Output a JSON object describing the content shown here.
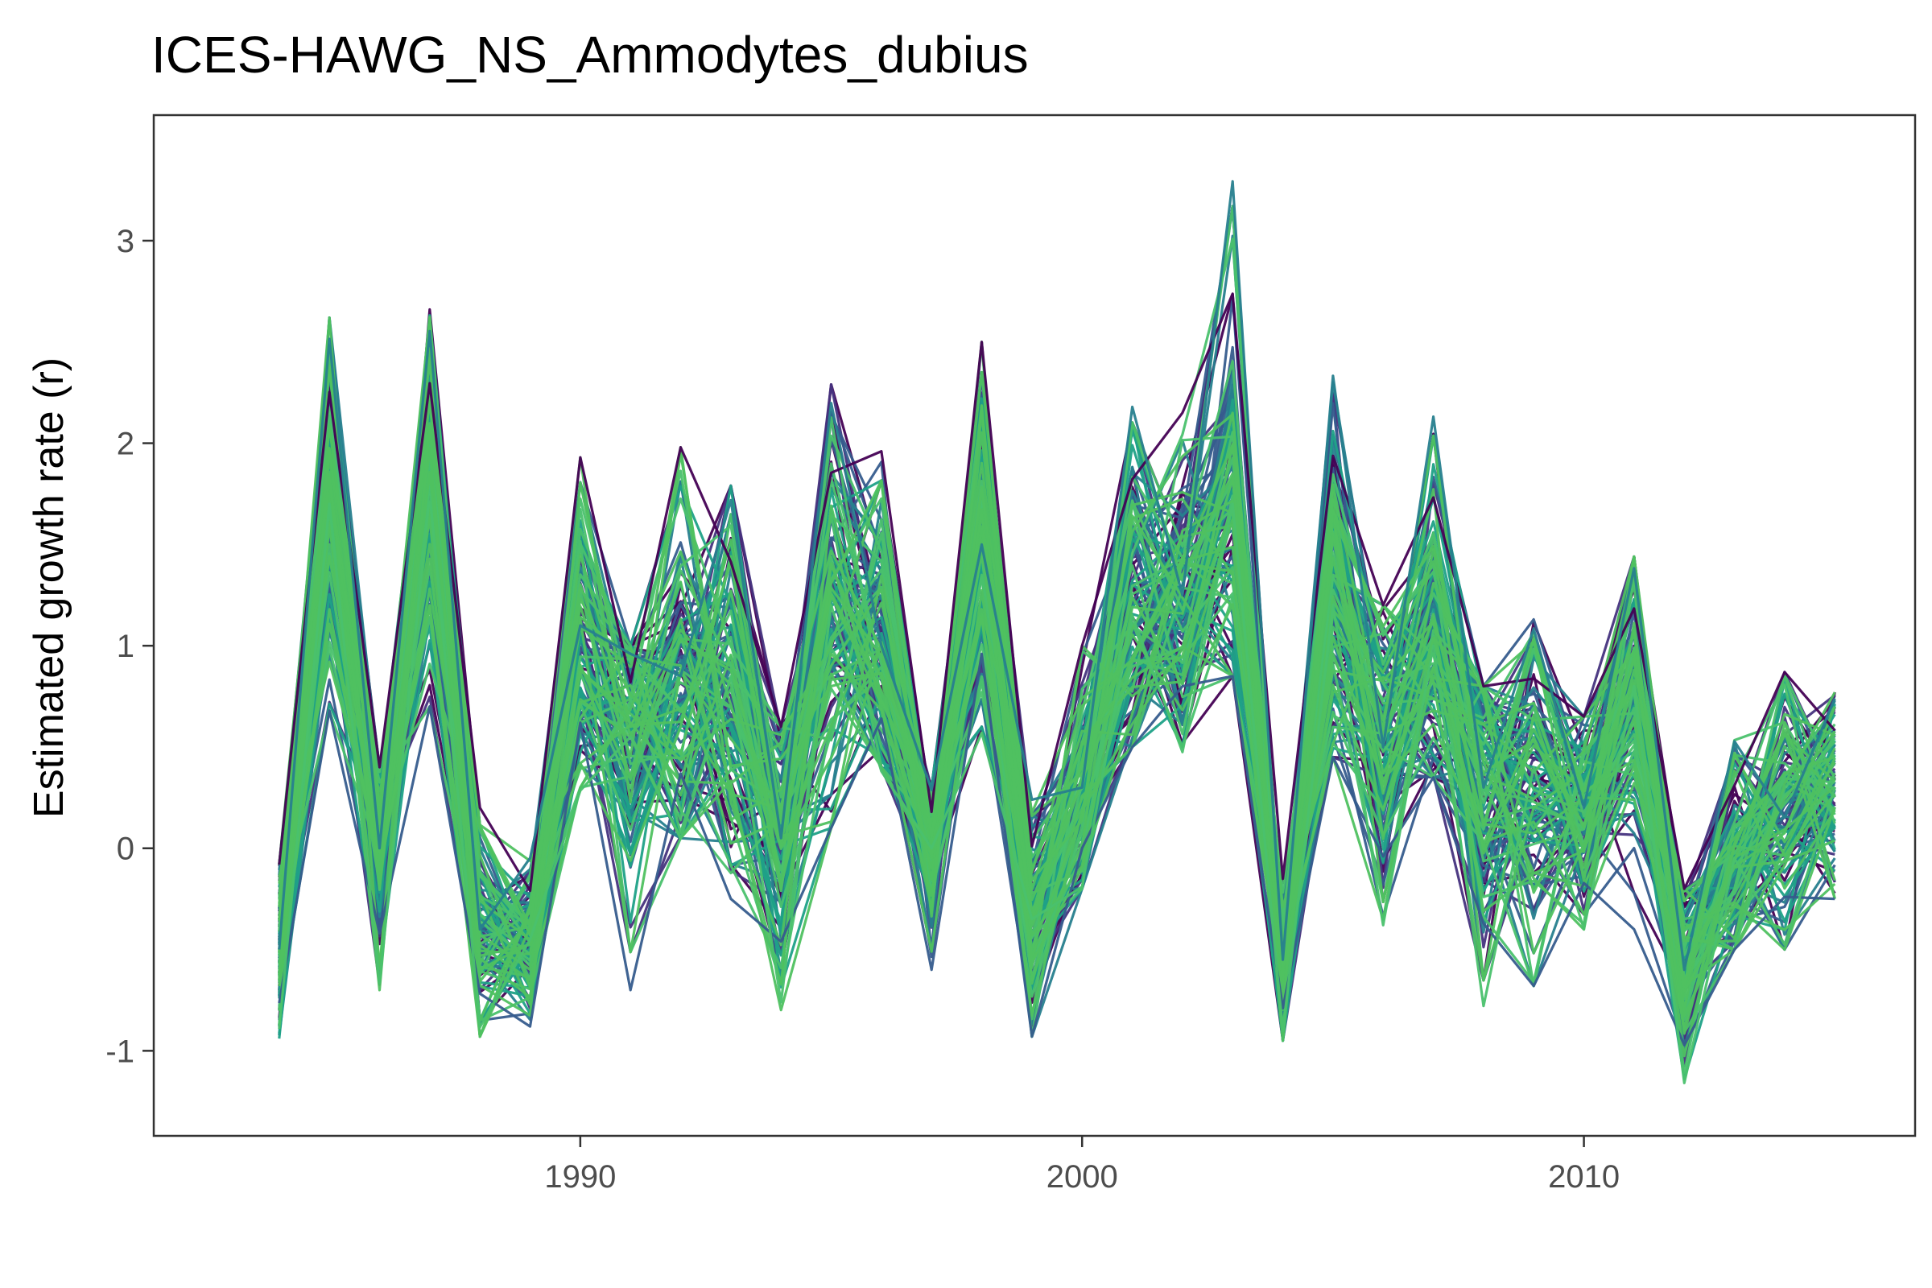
{
  "chart_data": {
    "type": "line",
    "title": "ICES-HAWG_NS_Ammodytes_dubius",
    "xlabel": "",
    "ylabel": "Estimated growth rate (r)",
    "xlim": [
      1981.5,
      2016.6
    ],
    "ylim": [
      -1.42,
      3.62
    ],
    "x_ticks": [
      1990,
      2000,
      2010
    ],
    "x_tick_labels": [
      "1990",
      "2000",
      "2010"
    ],
    "y_ticks": [
      -1,
      0,
      1,
      2,
      3
    ],
    "y_tick_labels": [
      "-1",
      "0",
      "1",
      "2",
      "3"
    ],
    "grid": false,
    "legend": "none",
    "x": [
      1984,
      1985,
      1986,
      1987,
      1988,
      1989,
      1990,
      1991,
      1992,
      1993,
      1994,
      1995,
      1996,
      1997,
      1998,
      1999,
      2000,
      2001,
      2002,
      2003,
      2004,
      2005,
      2006,
      2007,
      2008,
      2009,
      2010,
      2011,
      2012,
      2013,
      2014,
      2015
    ],
    "series_count": 120,
    "colors": [
      "#440154",
      "#46337e",
      "#365c8d",
      "#277f8e",
      "#1fa187",
      "#4ac16d",
      "#4fc160"
    ],
    "envelope": {
      "low": [
        -0.94,
        0.68,
        -0.7,
        0.7,
        -0.93,
        -0.88,
        0.3,
        -0.7,
        0.05,
        -0.25,
        -0.8,
        0.1,
        0.4,
        -0.6,
        0.6,
        -0.93,
        -0.2,
        0.5,
        0.5,
        0.85,
        -0.95,
        0.45,
        -0.4,
        0.35,
        -0.82,
        -0.68,
        -0.42,
        -0.4,
        -1.22,
        -0.5,
        -0.5,
        -0.25
      ],
      "center": [
        -0.5,
        1.7,
        0.0,
        1.75,
        -0.4,
        -0.45,
        1.1,
        0.55,
        0.85,
        0.85,
        0.05,
        1.2,
        1.0,
        0.0,
        1.5,
        -0.35,
        0.3,
        1.15,
        1.25,
        1.7,
        -0.55,
        1.2,
        0.5,
        1.0,
        0.3,
        0.4,
        0.2,
        0.8,
        -0.6,
        -0.05,
        0.15,
        0.3
      ],
      "high": [
        -0.08,
        2.62,
        0.4,
        2.66,
        0.2,
        -0.05,
        1.93,
        1.0,
        1.98,
        1.79,
        0.6,
        2.29,
        1.96,
        0.3,
        2.5,
        0.25,
        1.0,
        2.27,
        2.15,
        3.43,
        -0.15,
        2.43,
        1.2,
        2.22,
        0.8,
        1.13,
        0.65,
        1.44,
        -0.2,
        0.55,
        0.87,
        0.77
      ]
    }
  }
}
